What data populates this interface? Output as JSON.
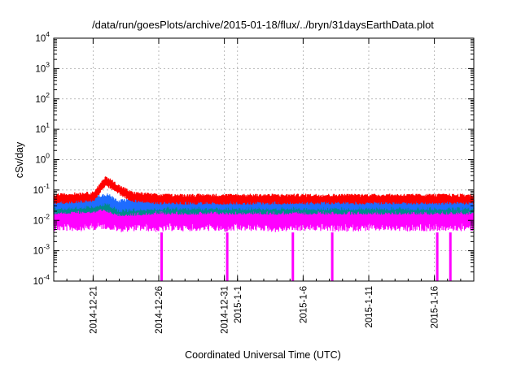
{
  "chart_data": {
    "type": "line",
    "title": "/data/run/goesPlots/archive/2015-01-18/flux/../bryn/31daysEarthData.plot",
    "xlabel": "Coordinated Universal Time (UTC)",
    "ylabel": "cSv/day",
    "yscale": "log",
    "ylim": [
      0.0001,
      10000
    ],
    "xlim": [
      "2014-12-18",
      "2015-01-19"
    ],
    "grid": true,
    "y_ticks": [
      {
        "value": 0.0001,
        "base": "10",
        "exp": "-4"
      },
      {
        "value": 0.001,
        "base": "10",
        "exp": "-3"
      },
      {
        "value": 0.01,
        "base": "10",
        "exp": "-2"
      },
      {
        "value": 0.1,
        "base": "10",
        "exp": "-1"
      },
      {
        "value": 1,
        "base": "10",
        "exp": "0"
      },
      {
        "value": 10,
        "base": "10",
        "exp": "1"
      },
      {
        "value": 100,
        "base": "10",
        "exp": "2"
      },
      {
        "value": 1000,
        "base": "10",
        "exp": "3"
      },
      {
        "value": 10000,
        "base": "10",
        "exp": "4"
      }
    ],
    "x_ticks": [
      {
        "date": "2014-12-21",
        "label": "2014-12-21"
      },
      {
        "date": "2014-12-26",
        "label": "2014-12-26"
      },
      {
        "date": "2014-12-31",
        "label": "2014-12-31"
      },
      {
        "date": "2015-01-01",
        "label": "2015-1-1"
      },
      {
        "date": "2015-01-06",
        "label": "2015-1-6"
      },
      {
        "date": "2015-01-11",
        "label": "2015-1-11"
      },
      {
        "date": "2015-01-16",
        "label": "2015-1-16"
      }
    ],
    "series": [
      {
        "color": "#ff00ff",
        "x": [
          "2014-12-18",
          "2014-12-19",
          "2014-12-20",
          "2014-12-21",
          "2014-12-22",
          "2014-12-23",
          "2014-12-24",
          "2014-12-25",
          "2014-12-26",
          "2014-12-27",
          "2014-12-28",
          "2014-12-29",
          "2014-12-30",
          "2014-12-31",
          "2015-01-01",
          "2015-01-02",
          "2015-01-03",
          "2015-01-04",
          "2015-01-05",
          "2015-01-06",
          "2015-01-07",
          "2015-01-08",
          "2015-01-09",
          "2015-01-10",
          "2015-01-11",
          "2015-01-12",
          "2015-01-13",
          "2015-01-14",
          "2015-01-15",
          "2015-01-16",
          "2015-01-17",
          "2015-01-18",
          "2015-01-19"
        ],
        "values": [
          0.012,
          0.012,
          0.012,
          0.013,
          0.014,
          0.011,
          0.012,
          0.012,
          0.011,
          0.012,
          0.012,
          0.012,
          0.012,
          0.011,
          0.012,
          0.012,
          0.012,
          0.011,
          0.012,
          0.012,
          0.012,
          0.012,
          0.011,
          0.012,
          0.012,
          0.012,
          0.012,
          0.011,
          0.012,
          0.012,
          0.012,
          0.012,
          0.012
        ],
        "low": 0.004,
        "high": 0.03,
        "dropouts": [
          "2014-12-26",
          "2014-12-31",
          "2015-01-05",
          "2015-01-08",
          "2015-01-16",
          "2015-01-17"
        ]
      },
      {
        "color": "#008b8b",
        "x": [
          "2014-12-18",
          "2014-12-21",
          "2014-12-22",
          "2014-12-23",
          "2014-12-26",
          "2014-12-31",
          "2015-01-06",
          "2015-01-11",
          "2015-01-16",
          "2015-01-19"
        ],
        "values": [
          0.025,
          0.028,
          0.03,
          0.022,
          0.025,
          0.025,
          0.025,
          0.025,
          0.025,
          0.025
        ],
        "low": 0.015,
        "high": 0.04
      },
      {
        "color": "#1e6cff",
        "x": [
          "2014-12-18",
          "2014-12-21",
          "2014-12-22",
          "2014-12-23",
          "2014-12-26",
          "2014-12-31",
          "2015-01-06",
          "2015-01-11",
          "2015-01-16",
          "2015-01-19"
        ],
        "values": [
          0.035,
          0.04,
          0.05,
          0.03,
          0.035,
          0.035,
          0.035,
          0.035,
          0.035,
          0.035
        ],
        "low": 0.02,
        "high": 0.055
      },
      {
        "color": "#ff0000",
        "x": [
          "2014-12-18",
          "2014-12-21",
          "2014-12-22",
          "2014-12-23",
          "2014-12-24",
          "2014-12-26",
          "2014-12-31",
          "2015-01-06",
          "2015-01-11",
          "2015-01-16",
          "2015-01-19"
        ],
        "values": [
          0.05,
          0.06,
          0.2,
          0.1,
          0.06,
          0.05,
          0.05,
          0.05,
          0.05,
          0.05,
          0.05
        ],
        "low": 0.035,
        "high": 0.08
      }
    ]
  }
}
